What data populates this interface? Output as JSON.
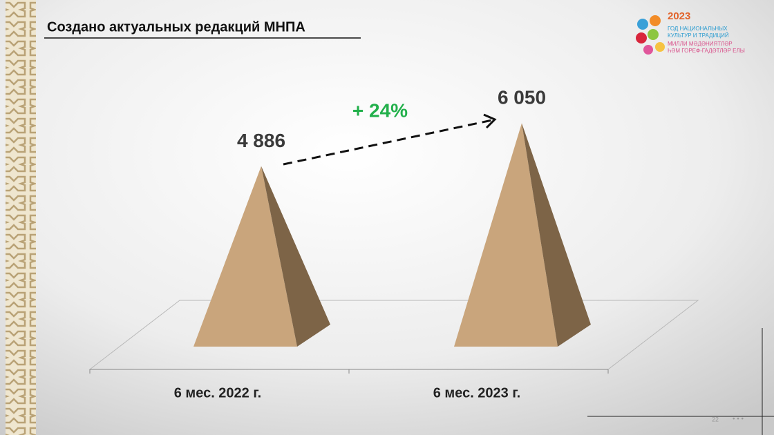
{
  "chart_data": {
    "type": "pyramid",
    "title": "Создано актуальных редакций МНПА",
    "categories": [
      "6 мес. 2022 г.",
      "6 мес. 2023 г."
    ],
    "values": [
      4886,
      6050
    ],
    "value_labels": [
      "4 886",
      "6 050"
    ],
    "annotation": "+ 24%",
    "color": "#c9a57c",
    "side_color": "#7d6447"
  },
  "logo": {
    "year": "2023",
    "lines": [
      "ГОД НАЦИОНАЛЬНЫХ",
      "КУЛЬТУР И ТРАДИЦИЙ",
      "МИЛЛИ МӘДӘНИЯТЛӘР",
      "ҺӘМ ГОРЕФ-ГАДӘТЛӘР ЕЛЫ"
    ]
  },
  "page_number": "22"
}
